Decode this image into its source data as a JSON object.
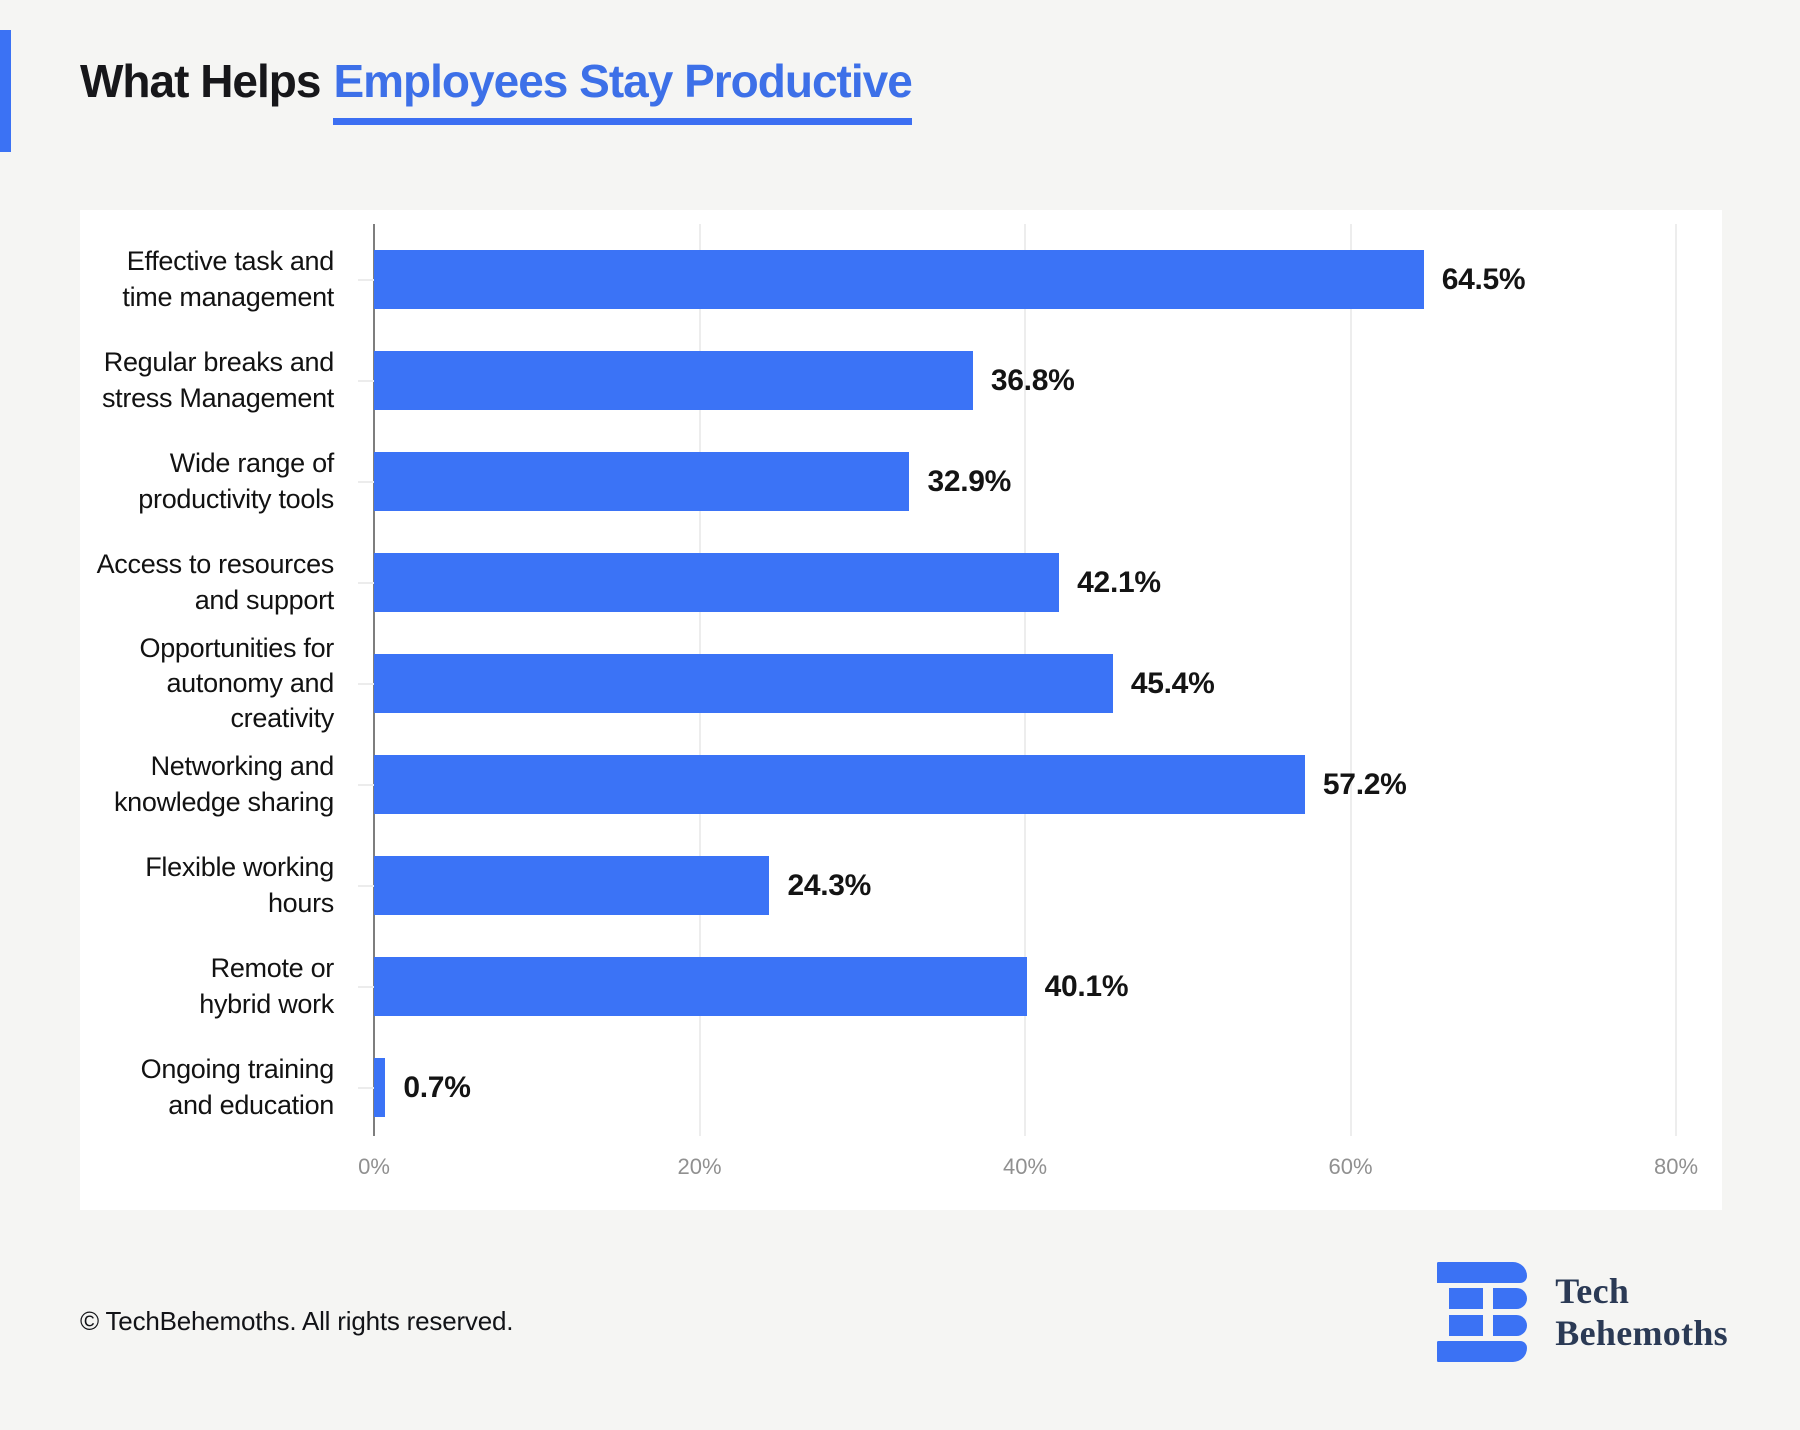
{
  "header": {
    "title_prefix": "What Helps",
    "title_highlight": "Employees Stay Productive"
  },
  "footer": {
    "copyright": "© TechBehemoths. All rights reserved.",
    "logo_line1": "Tech",
    "logo_line2": "Behemoths"
  },
  "colors": {
    "accent_blue": "#3B72F4",
    "bar_blue": "#3B73F6",
    "title_blue": "#3D70E8",
    "underline_blue": "#3C6FF2",
    "background": "#F5F5F3",
    "panel": "#FFFFFF",
    "axis_tick_gray": "#909090",
    "axis_line_gray": "#7E7E7E",
    "grid_gray": "#EDEDED",
    "logo_navy": "#2B3A55"
  },
  "chart_data": {
    "type": "bar",
    "orientation": "horizontal",
    "title": "What Helps Employees Stay Productive",
    "categories": [
      "Effective task and\ntime management",
      "Regular breaks and\nstress Management",
      "Wide range of\nproductivity tools",
      "Access to resources\nand support",
      "Opportunities for\nautonomy and\ncreativity",
      "Networking and\nknowledge sharing",
      "Flexible working\nhours",
      "Remote or\nhybrid work",
      "Ongoing training\nand education"
    ],
    "values": [
      64.5,
      36.8,
      32.9,
      42.1,
      45.4,
      57.2,
      24.3,
      40.1,
      0.7
    ],
    "value_labels": [
      "64.5%",
      "36.8%",
      "32.9%",
      "42.1%",
      "45.4%",
      "57.2%",
      "24.3%",
      "40.1%",
      "0.7%"
    ],
    "x_ticks": [
      {
        "label": "0%",
        "value": 0
      },
      {
        "label": "20%",
        "value": 20
      },
      {
        "label": "40%",
        "value": 40
      },
      {
        "label": "60%",
        "value": 60
      },
      {
        "label": "80%",
        "value": 80
      }
    ],
    "xlim": [
      0,
      80
    ],
    "grid": true,
    "legend": false,
    "bar_color": "#3B73F6"
  }
}
